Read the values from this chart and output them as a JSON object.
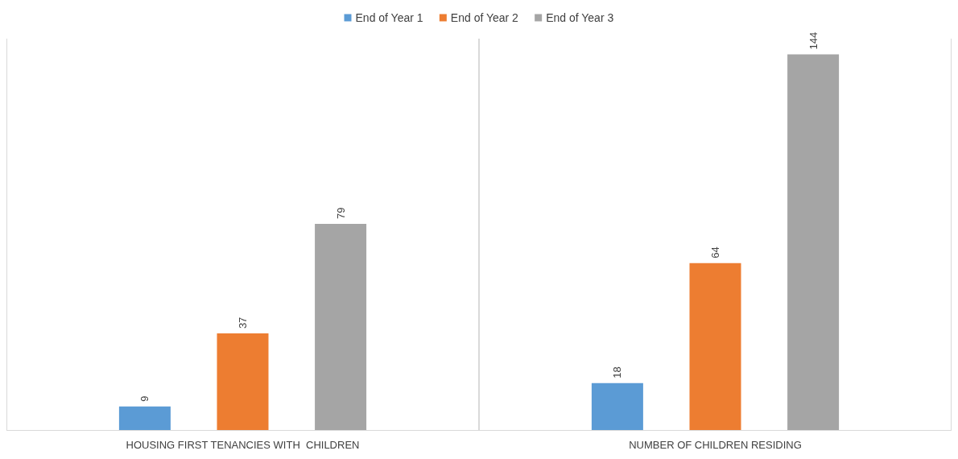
{
  "chart_data": {
    "type": "bar",
    "categories": [
      "HOUSING FIRST TENANCIES WITH  CHILDREN",
      "NUMBER OF CHILDREN RESIDING"
    ],
    "series": [
      {
        "name": "End of Year 1",
        "color": "#5b9bd5",
        "values": [
          9,
          18
        ]
      },
      {
        "name": "End of Year 2",
        "color": "#ed7d31",
        "values": [
          37,
          64
        ]
      },
      {
        "name": "End of Year 3",
        "color": "#a5a5a5",
        "values": [
          79,
          144
        ]
      }
    ],
    "data_labels": true,
    "legend": "top",
    "grid": "x"
  }
}
